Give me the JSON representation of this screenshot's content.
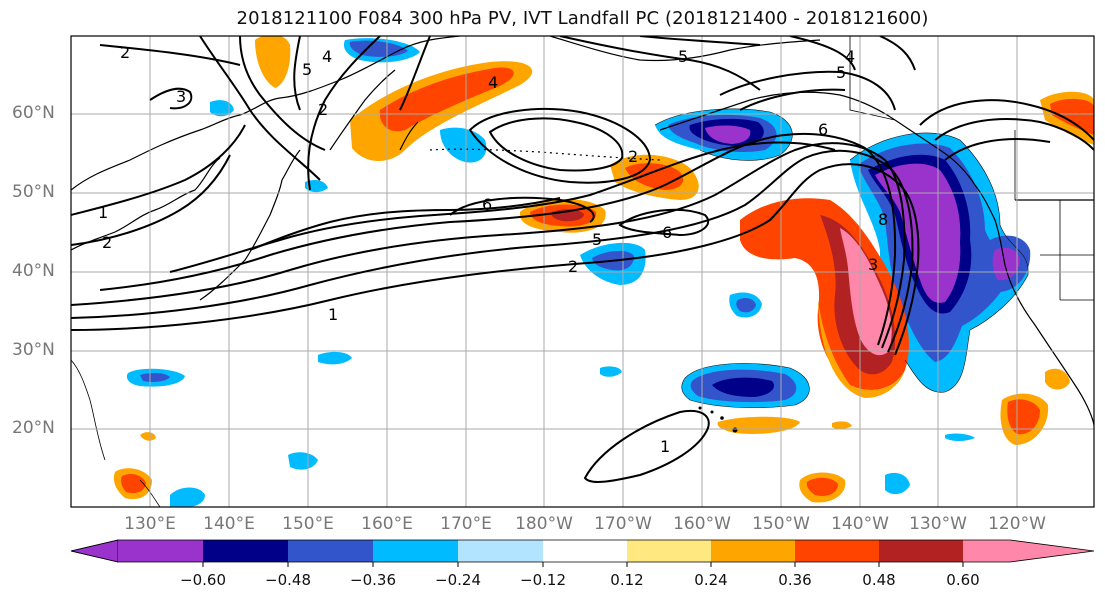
{
  "title": "2018121100 F084 300 hPa PV, IVT Landfall PC (2018121400 - 2018121600)",
  "lat_labels": [
    "60°N",
    "50°N",
    "40°N",
    "30°N",
    "20°N"
  ],
  "lon_labels": [
    "130°E",
    "140°E",
    "150°E",
    "160°E",
    "170°E",
    "180°W",
    "170°W",
    "160°W",
    "150°W",
    "140°W",
    "130°W",
    "120°W"
  ],
  "colorbar": {
    "colors": [
      "#9933cc",
      "#000088",
      "#3355cc",
      "#00bbff",
      "#b3e4ff",
      "#ffffff",
      "#ffe880",
      "#ffa500",
      "#ff4400",
      "#b22222",
      "#ff88aa"
    ],
    "tick_labels": [
      "−0.60",
      "−0.48",
      "−0.36",
      "−0.24",
      "−0.12",
      "0.12",
      "0.24",
      "0.36",
      "0.48",
      "0.60"
    ]
  },
  "contour_labels": [
    "2",
    "3",
    "5",
    "4",
    "2",
    "4",
    "5",
    "4",
    "5",
    "6",
    "2",
    "6",
    "5",
    "6",
    "2",
    "1",
    "1",
    "2",
    "3",
    "8",
    "1"
  ]
}
